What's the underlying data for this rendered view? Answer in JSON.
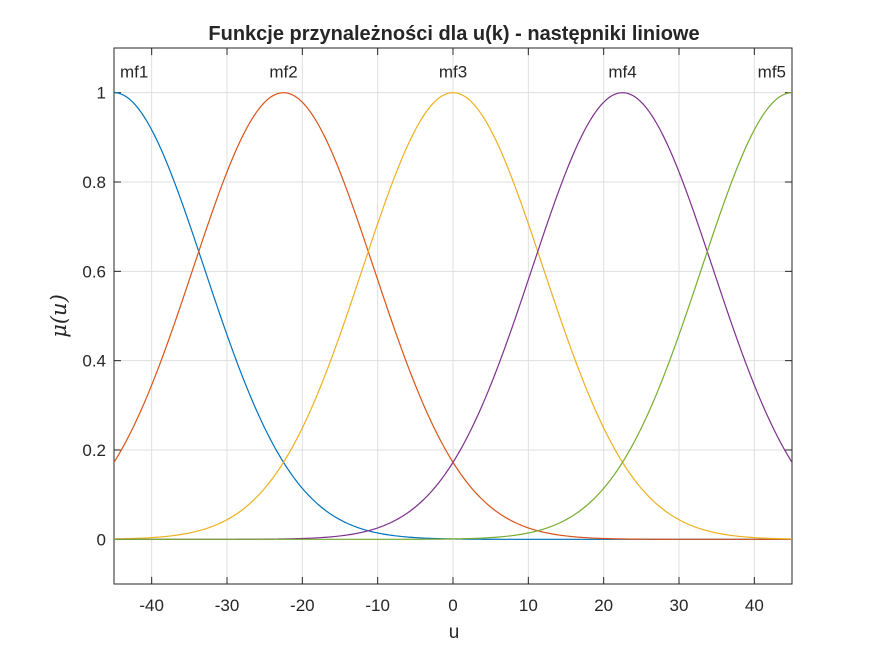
{
  "chart_data": {
    "type": "line",
    "title": "Funkcje przynależności dla u(k) - następniki liniowe",
    "xlabel": "u",
    "ylabel": "μ(u)",
    "xlim": [
      -45,
      45
    ],
    "ylim": [
      -0.1,
      1.1
    ],
    "xticks": [
      -40,
      -30,
      -20,
      -10,
      0,
      10,
      20,
      30,
      40
    ],
    "xtick_labels": [
      "-40",
      "-30",
      "-20",
      "-10",
      "0",
      "10",
      "20",
      "30",
      "40"
    ],
    "yticks": [
      0,
      0.2,
      0.4,
      0.6,
      0.8,
      1
    ],
    "ytick_labels": [
      "0",
      "0.2",
      "0.4",
      "0.6",
      "0.8",
      "1"
    ],
    "grid": true,
    "series": [
      {
        "name": "mf1",
        "center": -45,
        "sigma": 12,
        "color": "#0072BD"
      },
      {
        "name": "mf2",
        "center": -22.5,
        "sigma": 12,
        "color": "#D95319"
      },
      {
        "name": "mf3",
        "center": 0,
        "sigma": 12,
        "color": "#EDB120"
      },
      {
        "name": "mf4",
        "center": 22.5,
        "sigma": 12,
        "color": "#7E2F8E"
      },
      {
        "name": "mf5",
        "center": 45,
        "sigma": 12,
        "color": "#77AC30"
      }
    ]
  }
}
